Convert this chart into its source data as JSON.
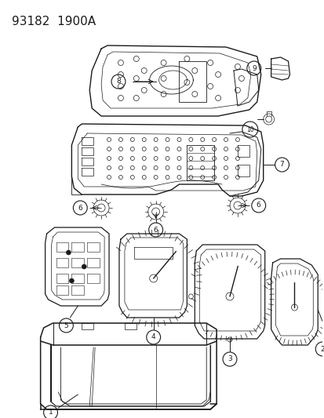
{
  "title_text": "93182  1900A",
  "bg_color": "#ffffff",
  "line_color": "#1a1a1a",
  "fig_width": 4.14,
  "fig_height": 5.33,
  "dpi": 100
}
